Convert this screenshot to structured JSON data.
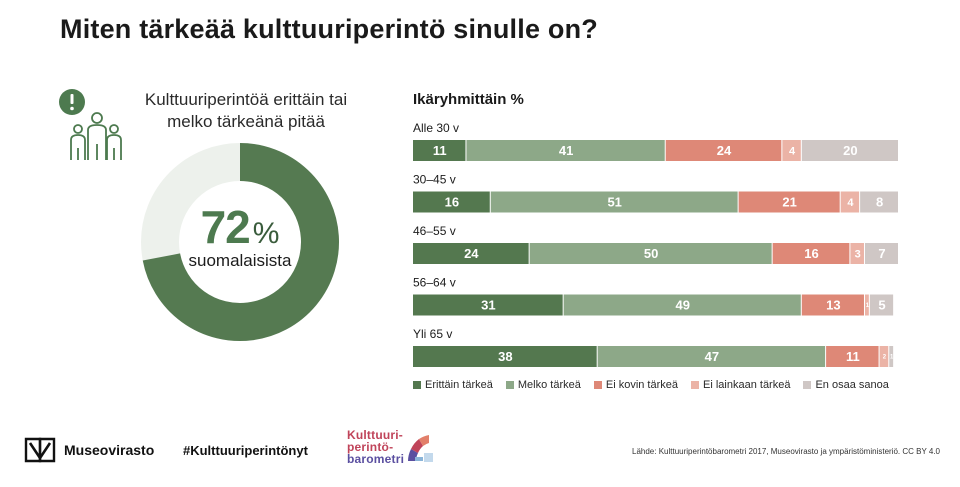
{
  "title": "Miten tärkeää kulttuuriperintö sinulle on?",
  "left_panel": {
    "subtitle_line1": "Kulttuuriperintöä erittäin tai",
    "subtitle_line2": "melko tärkeänä pitää",
    "percent": "72",
    "percent_symbol": "%",
    "center_label": "suomalaisista",
    "donut_value": 72
  },
  "chart_data": {
    "type": "bar",
    "orientation": "horizontal-stacked-100",
    "title": "Ikäryhmittäin %",
    "categories": [
      "Alle 30 v",
      "30–45 v",
      "46–55 v",
      "56–64 v",
      "Yli 65 v"
    ],
    "series": [
      {
        "name": "Erittäin tärkeä",
        "color": "#54784f",
        "values": [
          11,
          16,
          24,
          31,
          38
        ]
      },
      {
        "name": "Melko tärkeä",
        "color": "#8da888",
        "values": [
          41,
          51,
          50,
          49,
          47
        ]
      },
      {
        "name": "Ei kovin tärkeä",
        "color": "#de8877",
        "values": [
          24,
          21,
          16,
          13,
          11
        ]
      },
      {
        "name": "Ei lainkaan tärkeä",
        "color": "#ebb3a6",
        "values": [
          4,
          4,
          3,
          1,
          2
        ]
      },
      {
        "name": "En osaa sanoa",
        "color": "#cfc7c5",
        "values": [
          20,
          8,
          7,
          5,
          1
        ]
      }
    ],
    "xlim": [
      0,
      100
    ]
  },
  "footer": {
    "logo_text": "Museovirasto",
    "hashtag": "#Kulttuuriperintönyt",
    "barometri_line1": "Kulttuuri-",
    "barometri_line2": "perintö-",
    "barometri_line3": "barometri",
    "source": "Lähde: Kulttuuriperintöbarometri 2017, Museovirasto ja ympäristöministeriö. CC BY 4.0"
  }
}
